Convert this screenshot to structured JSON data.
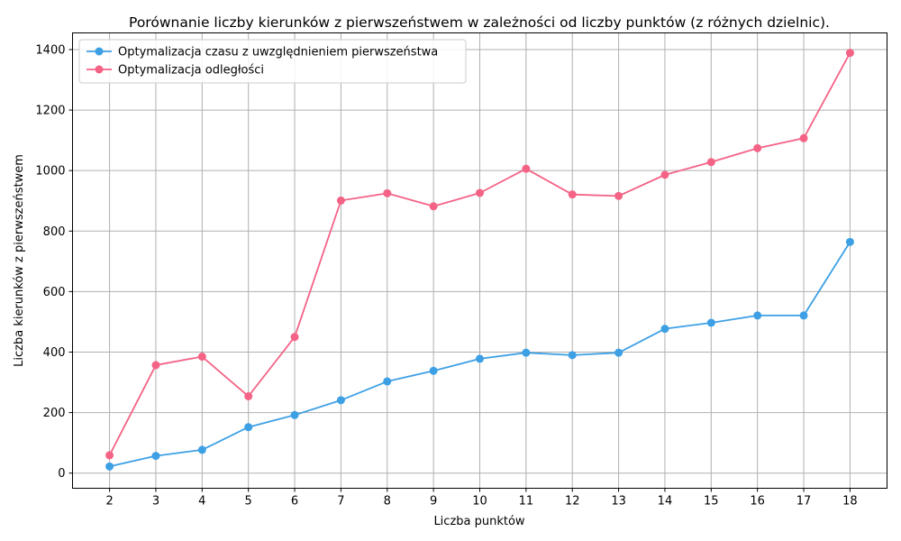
{
  "chart_data": {
    "type": "line",
    "title": "Porównanie liczby kierunków z pierwszeństwem w zależności od liczby punktów (z różnych dzielnic).",
    "xlabel": "Liczba punktów",
    "ylabel": "Liczba kierunków z pierwszeństwem",
    "x": [
      2,
      3,
      4,
      5,
      6,
      7,
      8,
      9,
      10,
      11,
      12,
      13,
      14,
      15,
      16,
      17,
      18
    ],
    "xticks": [
      "2",
      "3",
      "4",
      "5",
      "6",
      "7",
      "8",
      "9",
      "10",
      "11",
      "12",
      "13",
      "14",
      "15",
      "16",
      "17",
      "18"
    ],
    "yticks": [
      "0",
      "200",
      "400",
      "600",
      "800",
      "1000",
      "1200",
      "1400"
    ],
    "ytick_values": [
      0,
      200,
      400,
      600,
      800,
      1000,
      1200,
      1400
    ],
    "xlim": [
      1.2,
      18.8
    ],
    "ylim": [
      -50,
      1455
    ],
    "grid": true,
    "legend_position": "top-left",
    "series": [
      {
        "name": "Optymalizacja czasu z uwzględnieniem pierwszeństwa",
        "color": "#3da0e5",
        "marker": "circle",
        "values": [
          22,
          57,
          77,
          152,
          192,
          241,
          303,
          338,
          378,
          398,
          390,
          398,
          477,
          497,
          521,
          521,
          764
        ]
      },
      {
        "name": "Optymalizacja odległości",
        "color": "#f46386",
        "marker": "circle",
        "values": [
          59,
          357,
          385,
          254,
          450,
          901,
          925,
          882,
          926,
          1006,
          921,
          916,
          986,
          1028,
          1074,
          1107,
          1389
        ]
      }
    ]
  }
}
